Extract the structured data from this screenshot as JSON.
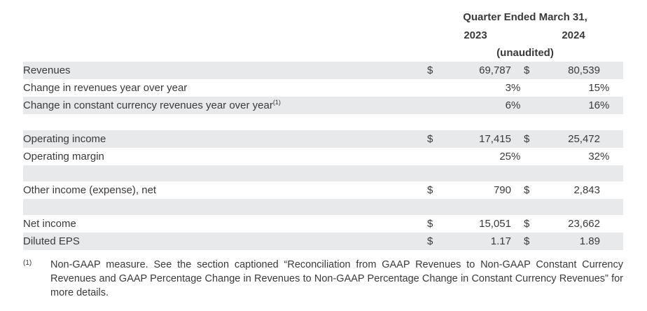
{
  "header": {
    "title": "Quarter Ended March 31,",
    "col_2023": "2023",
    "col_2024": "2024",
    "unaudited": "(unaudited)"
  },
  "table": {
    "rows": [
      {
        "spacer": false,
        "shaded": true,
        "label": "Revenues",
        "label_sup": "",
        "cur1": "$",
        "val1": "69,787",
        "unit1": "",
        "cur2": "$",
        "val2": "80,539",
        "unit2": ""
      },
      {
        "spacer": false,
        "shaded": false,
        "label": "Change in revenues year over year",
        "label_sup": "",
        "cur1": "",
        "val1": "3",
        "unit1": "%",
        "cur2": "",
        "val2": "15",
        "unit2": "%"
      },
      {
        "spacer": false,
        "shaded": true,
        "label": "Change in constant currency revenues year over year",
        "label_sup": "(1)",
        "cur1": "",
        "val1": "6",
        "unit1": "%",
        "cur2": "",
        "val2": "16",
        "unit2": "%"
      },
      {
        "spacer": true,
        "shaded": false
      },
      {
        "spacer": false,
        "shaded": true,
        "label": "Operating income",
        "label_sup": "",
        "cur1": "$",
        "val1": "17,415",
        "unit1": "",
        "cur2": "$",
        "val2": "25,472",
        "unit2": ""
      },
      {
        "spacer": false,
        "shaded": false,
        "label": "Operating margin",
        "label_sup": "",
        "cur1": "",
        "val1": "25",
        "unit1": "%",
        "cur2": "",
        "val2": "32",
        "unit2": "%"
      },
      {
        "spacer": true,
        "shaded": true
      },
      {
        "spacer": false,
        "shaded": false,
        "label": "Other income (expense), net",
        "label_sup": "",
        "cur1": "$",
        "val1": "790",
        "unit1": "",
        "cur2": "$",
        "val2": "2,843",
        "unit2": ""
      },
      {
        "spacer": true,
        "shaded": true
      },
      {
        "spacer": false,
        "shaded": false,
        "label": "Net income",
        "label_sup": "",
        "cur1": "$",
        "val1": "15,051",
        "unit1": "",
        "cur2": "$",
        "val2": "23,662",
        "unit2": ""
      },
      {
        "spacer": false,
        "shaded": true,
        "label": "Diluted EPS",
        "label_sup": "",
        "cur1": "$",
        "val1": "1.17",
        "unit1": "",
        "cur2": "$",
        "val2": "1.89",
        "unit2": ""
      }
    ]
  },
  "footnote": {
    "marker": "(1)",
    "text": "Non-GAAP measure. See the section captioned “Reconciliation from GAAP Revenues to Non-GAAP Constant Currency Revenues and GAAP Percentage Change in Revenues to Non-GAAP Percentage Change in Constant Currency Revenues” for more details."
  },
  "colors": {
    "background": "#ffffff",
    "text": "#3a3a3a",
    "row_shade": "#e8e9eb"
  }
}
